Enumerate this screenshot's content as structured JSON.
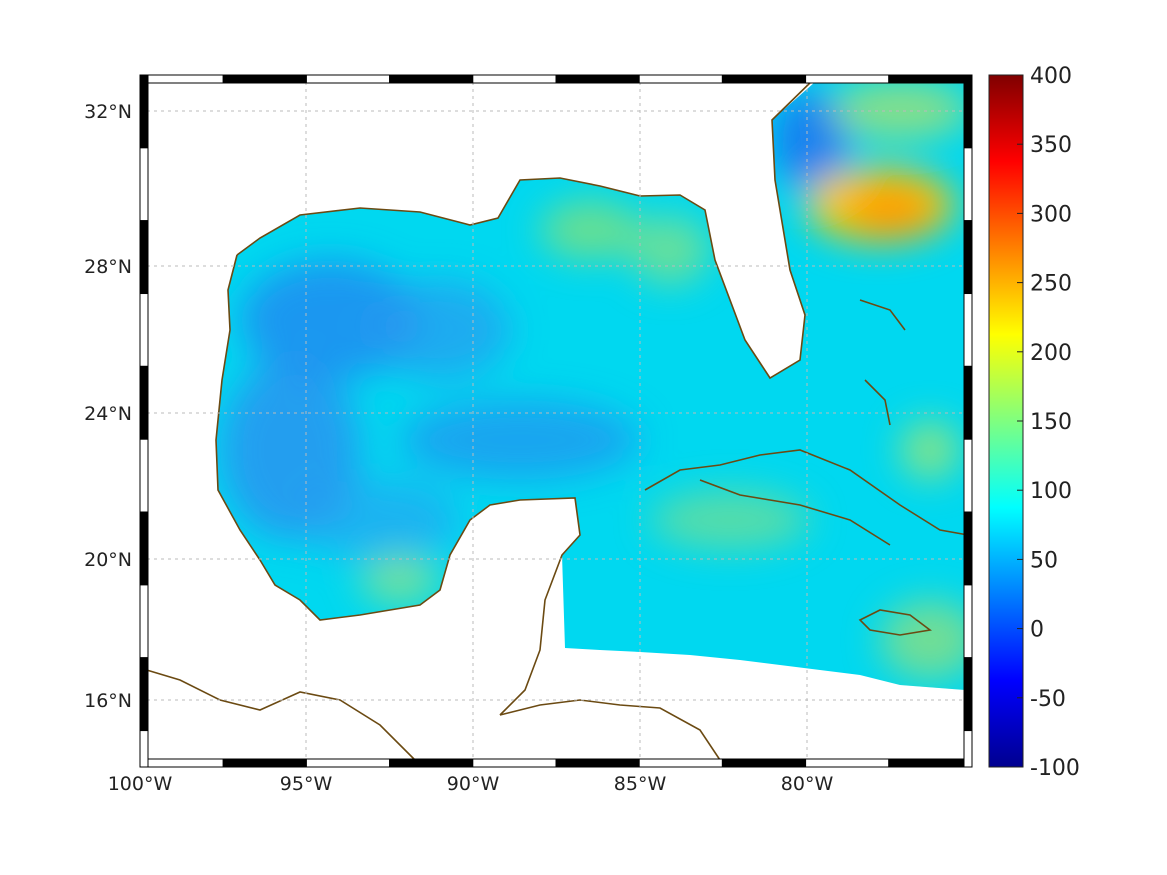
{
  "map": {
    "lon_range": [
      -100,
      -75
    ],
    "lat_range": [
      14,
      33
    ],
    "lon_tick_labels": [
      "100°W",
      "95°W",
      "90°W",
      "85°W",
      "80°W"
    ],
    "lat_tick_labels": [
      "32°N",
      "28°N",
      "24°N",
      "20°N",
      "16°N"
    ],
    "grid": "dotted",
    "projection_frame": "black and white alternating border"
  },
  "colorbar": {
    "colormap": "jet",
    "range": [
      -100,
      400
    ],
    "tick_labels": [
      "400",
      "350",
      "300",
      "250",
      "200",
      "150",
      "100",
      "50",
      "0",
      "-50",
      "-100"
    ],
    "placement": "right"
  },
  "colors": {
    "coastline": "#6b4a12",
    "land": "#ffffff"
  }
}
